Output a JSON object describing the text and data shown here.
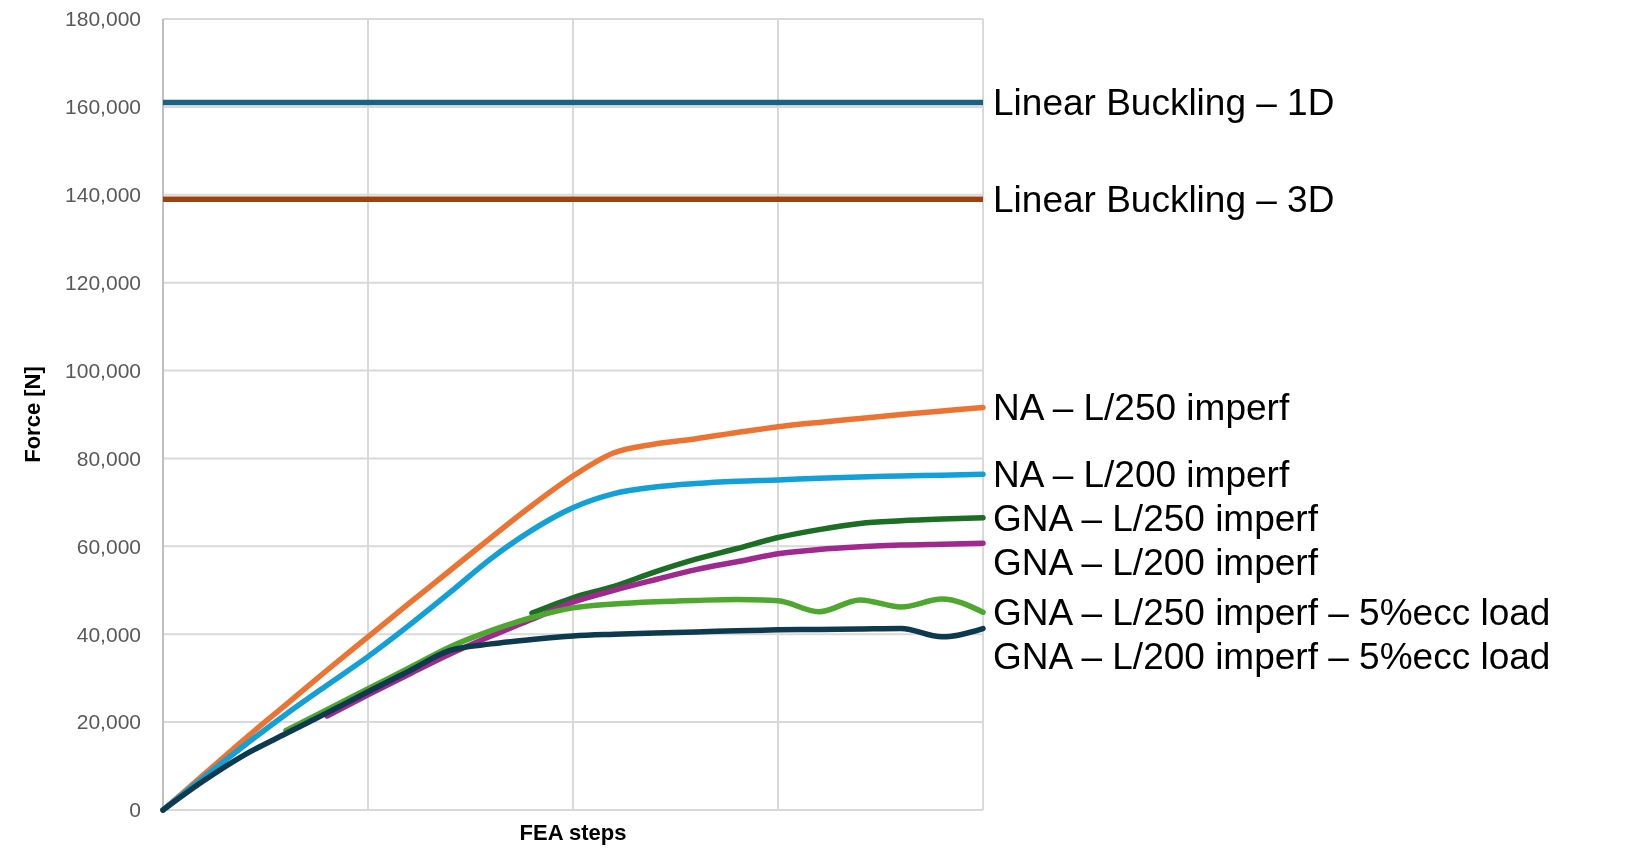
{
  "chart_data": {
    "type": "line",
    "xlabel": "FEA steps",
    "ylabel": "Force [N]",
    "categories": [
      null,
      null,
      null,
      null,
      null,
      null,
      null,
      null,
      null,
      null,
      null,
      null,
      null,
      null,
      null,
      null,
      null,
      null,
      null,
      null,
      null
    ],
    "ylim": [
      0,
      180000
    ],
    "yticks": [
      0,
      {
        "value": 20000,
        "label": "20,000"
      },
      {
        "value": 40000,
        "label": "40,000"
      },
      {
        "value": 60000,
        "label": "60,000"
      },
      {
        "value": 80000,
        "label": "80,000"
      },
      {
        "value": 100000,
        "label": "100,000"
      },
      {
        "value": 120000,
        "label": "120,000"
      },
      {
        "value": 140000,
        "label": "140,000"
      },
      {
        "value": 160000,
        "label": "160,000"
      },
      {
        "value": 180000,
        "label": "180,000"
      }
    ],
    "tick_labels": "y",
    "grid": true,
    "ref_lines": [
      {
        "axis": "y",
        "value": 161000,
        "label": "Linear Buckling – 1D",
        "color": "#1a6183"
      },
      {
        "axis": "y",
        "value": 139000,
        "label": "Linear Buckling – 3D",
        "color": "#9c4110"
      }
    ],
    "series": [
      {
        "name": "NA – L/250 imperf",
        "color": "#ec7432",
        "values": [
          0,
          8100,
          16200,
          24000,
          31800,
          39400,
          47000,
          54500,
          62000,
          69300,
          76000,
          81300,
          83300,
          84500,
          85900,
          87200,
          88200,
          89100,
          90000,
          90800,
          91600
        ]
      },
      {
        "name": "NA – L/200 imperf",
        "color": "#12a0d7",
        "values": [
          0,
          7500,
          14800,
          21800,
          28400,
          34900,
          42000,
          49500,
          57200,
          63700,
          68800,
          72000,
          73500,
          74300,
          74800,
          75100,
          75500,
          75800,
          76000,
          76200,
          76400
        ]
      },
      {
        "name": "GNA – L/250 imperf",
        "color": "#1b6e23",
        "values": [
          null,
          null,
          null,
          null,
          null,
          null,
          null,
          null,
          null,
          44800,
          48300,
          50900,
          54200,
          57100,
          59500,
          62000,
          63800,
          65200,
          65800,
          66200,
          66500
        ]
      },
      {
        "name": "GNA – L/200 imperf",
        "color": "#a0298f",
        "values": [
          null,
          null,
          null,
          null,
          21400,
          26200,
          30900,
          35500,
          39600,
          43400,
          47300,
          50000,
          52400,
          54700,
          56500,
          58300,
          59300,
          59900,
          60300,
          60500,
          60700
        ]
      },
      {
        "name": "GNA – L/250 imperf – 5%ecc load",
        "color": "#4ea72e",
        "values": [
          null,
          null,
          null,
          18100,
          22800,
          27600,
          32300,
          37100,
          40800,
          43800,
          46000,
          46900,
          47400,
          47700,
          47900,
          47600,
          45100,
          47800,
          46200,
          48000,
          45000
        ]
      },
      {
        "name": "GNA – L/200 imperf – 5%ecc load",
        "color": "#0e3a4f",
        "values": [
          0,
          6700,
          12600,
          17400,
          22100,
          26900,
          31600,
          36300,
          37800,
          38800,
          39600,
          40000,
          40300,
          40500,
          40800,
          41000,
          41100,
          41200,
          41300,
          39400,
          41300
        ]
      }
    ]
  }
}
